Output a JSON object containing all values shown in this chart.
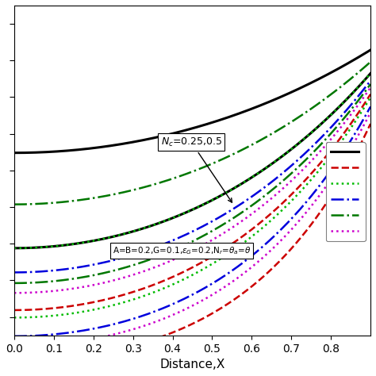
{
  "xlabel": "Distance,X",
  "xlim": [
    0.0,
    0.9
  ],
  "xticks": [
    0.0,
    0.1,
    0.2,
    0.3,
    0.4,
    0.5,
    0.6,
    0.7,
    0.8
  ],
  "annotation_text": "$N_c$=0.25,0.5",
  "box_text": "A=B=0.2,G=0.1,$\\varepsilon_G$=0.2,N$_r$=$\\theta_a$=$\\theta$",
  "line_styles": [
    {
      "color": "#000000",
      "linestyle": "-",
      "linewidth": 2.2
    },
    {
      "color": "#cc0000",
      "linestyle": "--",
      "linewidth": 1.8
    },
    {
      "color": "#00bb00",
      "linestyle": ":",
      "linewidth": 1.8
    },
    {
      "color": "#0000dd",
      "linestyle": "-.",
      "linewidth": 1.8
    },
    {
      "color": "#007700",
      "linestyle": "-.",
      "linewidth": 1.8
    },
    {
      "color": "#cc00cc",
      "linestyle": ":",
      "linewidth": 1.8
    }
  ],
  "m_low": [
    1.0,
    2.2,
    1.6,
    1.8,
    1.3,
    2.0
  ],
  "m_high": [
    1.6,
    3.2,
    2.3,
    2.6,
    1.9,
    2.8
  ],
  "ylim": [
    0.15,
    1.05
  ],
  "figsize": [
    4.74,
    4.74
  ],
  "dpi": 100
}
